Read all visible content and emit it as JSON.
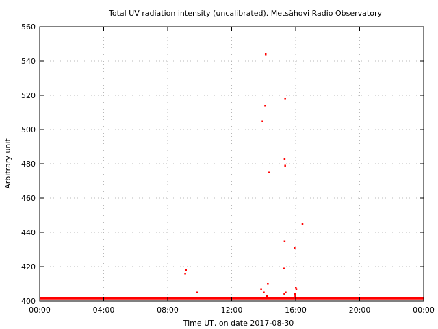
{
  "chart_data": {
    "type": "scatter",
    "title": "Total UV radiation intensity (uncalibrated). Metsähovi Radio Observatory",
    "xlabel": "Time UT, on date 2017-08-30",
    "ylabel": "Arbitrary unit",
    "xlim": [
      "00:00",
      "24:00"
    ],
    "ylim": [
      400,
      560
    ],
    "x_ticks": [
      "00:00",
      "04:00",
      "08:00",
      "12:00",
      "16:00",
      "20:00",
      "00:00"
    ],
    "y_ticks": [
      "400",
      "420",
      "440",
      "460",
      "480",
      "500",
      "520",
      "540",
      "560"
    ],
    "grid": true,
    "marker_color": "#ff0000",
    "baseline": {
      "from": "00:00",
      "to": "24:00",
      "value": 401.5,
      "description": "dense continuous series of points at the bottom of the plot"
    },
    "points": [
      {
        "x": "09:05",
        "y": 416
      },
      {
        "x": "09:08",
        "y": 418
      },
      {
        "x": "09:50",
        "y": 405
      },
      {
        "x": "13:50",
        "y": 407
      },
      {
        "x": "13:55",
        "y": 505
      },
      {
        "x": "14:00",
        "y": 405
      },
      {
        "x": "14:05",
        "y": 514
      },
      {
        "x": "14:07",
        "y": 544
      },
      {
        "x": "14:12",
        "y": 403
      },
      {
        "x": "14:15",
        "y": 410
      },
      {
        "x": "14:20",
        "y": 475
      },
      {
        "x": "15:07",
        "y": 402
      },
      {
        "x": "15:15",
        "y": 419
      },
      {
        "x": "15:17",
        "y": 404
      },
      {
        "x": "15:18",
        "y": 435
      },
      {
        "x": "15:18",
        "y": 483
      },
      {
        "x": "15:20",
        "y": 479
      },
      {
        "x": "15:20",
        "y": 518
      },
      {
        "x": "15:22",
        "y": 405
      },
      {
        "x": "15:55",
        "y": 431
      },
      {
        "x": "15:57",
        "y": 404
      },
      {
        "x": "15:58",
        "y": 403
      },
      {
        "x": "16:00",
        "y": 408
      },
      {
        "x": "16:02",
        "y": 407
      },
      {
        "x": "16:25",
        "y": 445
      }
    ]
  }
}
